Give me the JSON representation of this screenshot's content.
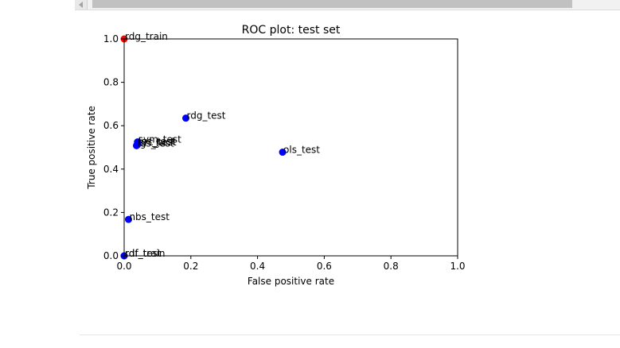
{
  "chart_data": {
    "type": "scatter",
    "title": "ROC plot: test set",
    "xlabel": "False positive rate",
    "ylabel": "True positive rate",
    "xlim": [
      0.0,
      1.0
    ],
    "ylim": [
      0.0,
      1.0
    ],
    "xticks": [
      "0.0",
      "0.2",
      "0.4",
      "0.6",
      "0.8",
      "1.0"
    ],
    "yticks": [
      "0.0",
      "0.2",
      "0.4",
      "0.6",
      "0.8",
      "1.0"
    ],
    "grid": false,
    "points": [
      {
        "label": "rdg_train",
        "x": 0.0,
        "y": 1.0,
        "color": "#ff0000"
      },
      {
        "label": "rdf_train",
        "x": 0.0,
        "y": 0.0,
        "color": "#0000ff"
      },
      {
        "label": "rdf_test",
        "x": 0.0,
        "y": 0.0,
        "color": "#0000ff"
      },
      {
        "label": "rdg_test",
        "x": 0.185,
        "y": 0.635,
        "color": "#0000ff"
      },
      {
        "label": "ols_test",
        "x": 0.475,
        "y": 0.478,
        "color": "#0000ff"
      },
      {
        "label": "svm_test",
        "x": 0.04,
        "y": 0.525,
        "color": "#0000ff"
      },
      {
        "label": "lgs_test",
        "x": 0.04,
        "y": 0.517,
        "color": "#0000ff"
      },
      {
        "label": "prc_test",
        "x": 0.04,
        "y": 0.512,
        "color": "#0000ff"
      },
      {
        "label": "lgs_test",
        "x": 0.037,
        "y": 0.508,
        "color": "#0000ff"
      },
      {
        "label": "nbs_test",
        "x": 0.013,
        "y": 0.168,
        "color": "#0000ff"
      }
    ]
  }
}
